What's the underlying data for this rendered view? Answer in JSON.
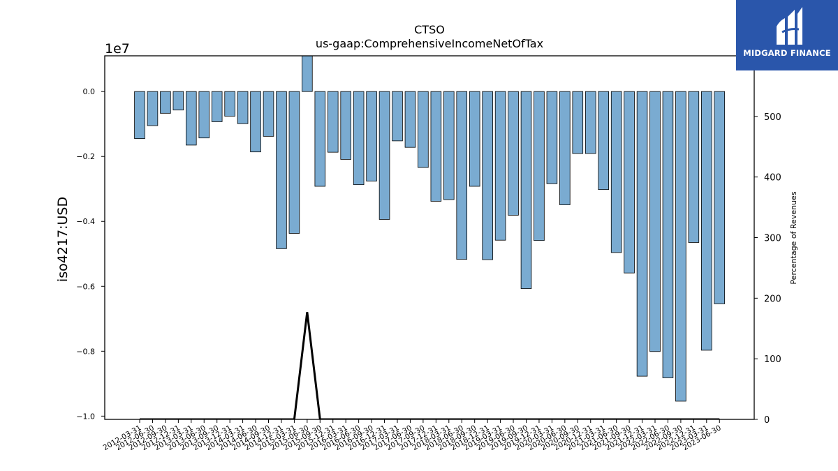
{
  "brand": {
    "name": "MIDGARD FINANCE",
    "background_color": "#2a56ab",
    "icon": "midgard-logo-icon"
  },
  "chart_data": {
    "type": "bar",
    "title": "CTSO",
    "subtitle": "us-gaap:ComprehensiveIncomeNetOfTax",
    "ylabel": "iso4217:USD",
    "y2label": "Percentage of Revenues",
    "y_scale_label": "1e7",
    "ylim": [
      -1.01,
      0.11
    ],
    "y2lim": [
      0,
      600
    ],
    "yticks": [
      "0.0",
      "−0.2",
      "−0.4",
      "−0.6",
      "−0.8",
      "−1.0"
    ],
    "y2ticks": [
      "0",
      "100",
      "200",
      "300",
      "400",
      "500"
    ],
    "bar_color": "#7aabd1",
    "bar_edge_color": "#000000",
    "line_color": "#000000",
    "grid": false,
    "categories": [
      "2012-03-31",
      "2012-06-30",
      "2012-09-30",
      "2012-12-31",
      "2013-03-31",
      "2013-06-30",
      "2013-09-30",
      "2013-12-31",
      "2014-03-31",
      "2014-06-30",
      "2014-09-30",
      "2014-12-31",
      "2015-03-31",
      "2015-06-30",
      "2015-09-30",
      "2015-12-31",
      "2016-03-31",
      "2016-06-30",
      "2016-09-30",
      "2016-12-31",
      "2017-03-31",
      "2017-06-30",
      "2017-09-30",
      "2017-12-31",
      "2018-03-31",
      "2018-06-30",
      "2018-09-30",
      "2018-12-31",
      "2019-03-31",
      "2019-06-30",
      "2019-09-30",
      "2019-12-31",
      "2020-03-31",
      "2020-06-30",
      "2020-09-30",
      "2020-12-31",
      "2021-03-31",
      "2021-06-30",
      "2021-09-30",
      "2021-12-31",
      "2022-03-31",
      "2022-06-30",
      "2022-09-30",
      "2022-12-31",
      "2023-03-31",
      "2023-06-30"
    ],
    "values": [
      -0.145,
      -0.105,
      -0.067,
      -0.057,
      -0.165,
      -0.143,
      -0.093,
      -0.076,
      -0.099,
      -0.186,
      -0.138,
      -0.484,
      -0.437,
      0.11,
      -0.292,
      -0.187,
      -0.209,
      -0.287,
      -0.276,
      -0.394,
      -0.152,
      -0.172,
      -0.234,
      -0.338,
      -0.333,
      -0.517,
      -0.292,
      -0.518,
      -0.458,
      -0.381,
      -0.607,
      -0.459,
      -0.284,
      -0.349,
      -0.191,
      -0.191,
      -0.302,
      -0.496,
      -0.559,
      -0.877,
      -0.801,
      -0.882,
      -0.954,
      -0.465,
      -0.797,
      -0.654
    ],
    "series": [
      {
        "name": "",
        "axis": "right",
        "values": [
          0,
          0,
          0,
          0,
          0,
          0,
          0,
          0,
          0,
          0,
          0,
          0,
          0,
          177,
          0,
          0,
          0,
          0,
          0,
          0,
          0,
          0,
          0,
          0,
          0,
          0,
          0,
          0,
          0,
          0,
          0,
          0,
          0,
          0,
          0,
          0,
          0,
          0,
          0,
          0,
          0,
          0,
          0,
          0,
          0,
          0
        ]
      }
    ]
  }
}
